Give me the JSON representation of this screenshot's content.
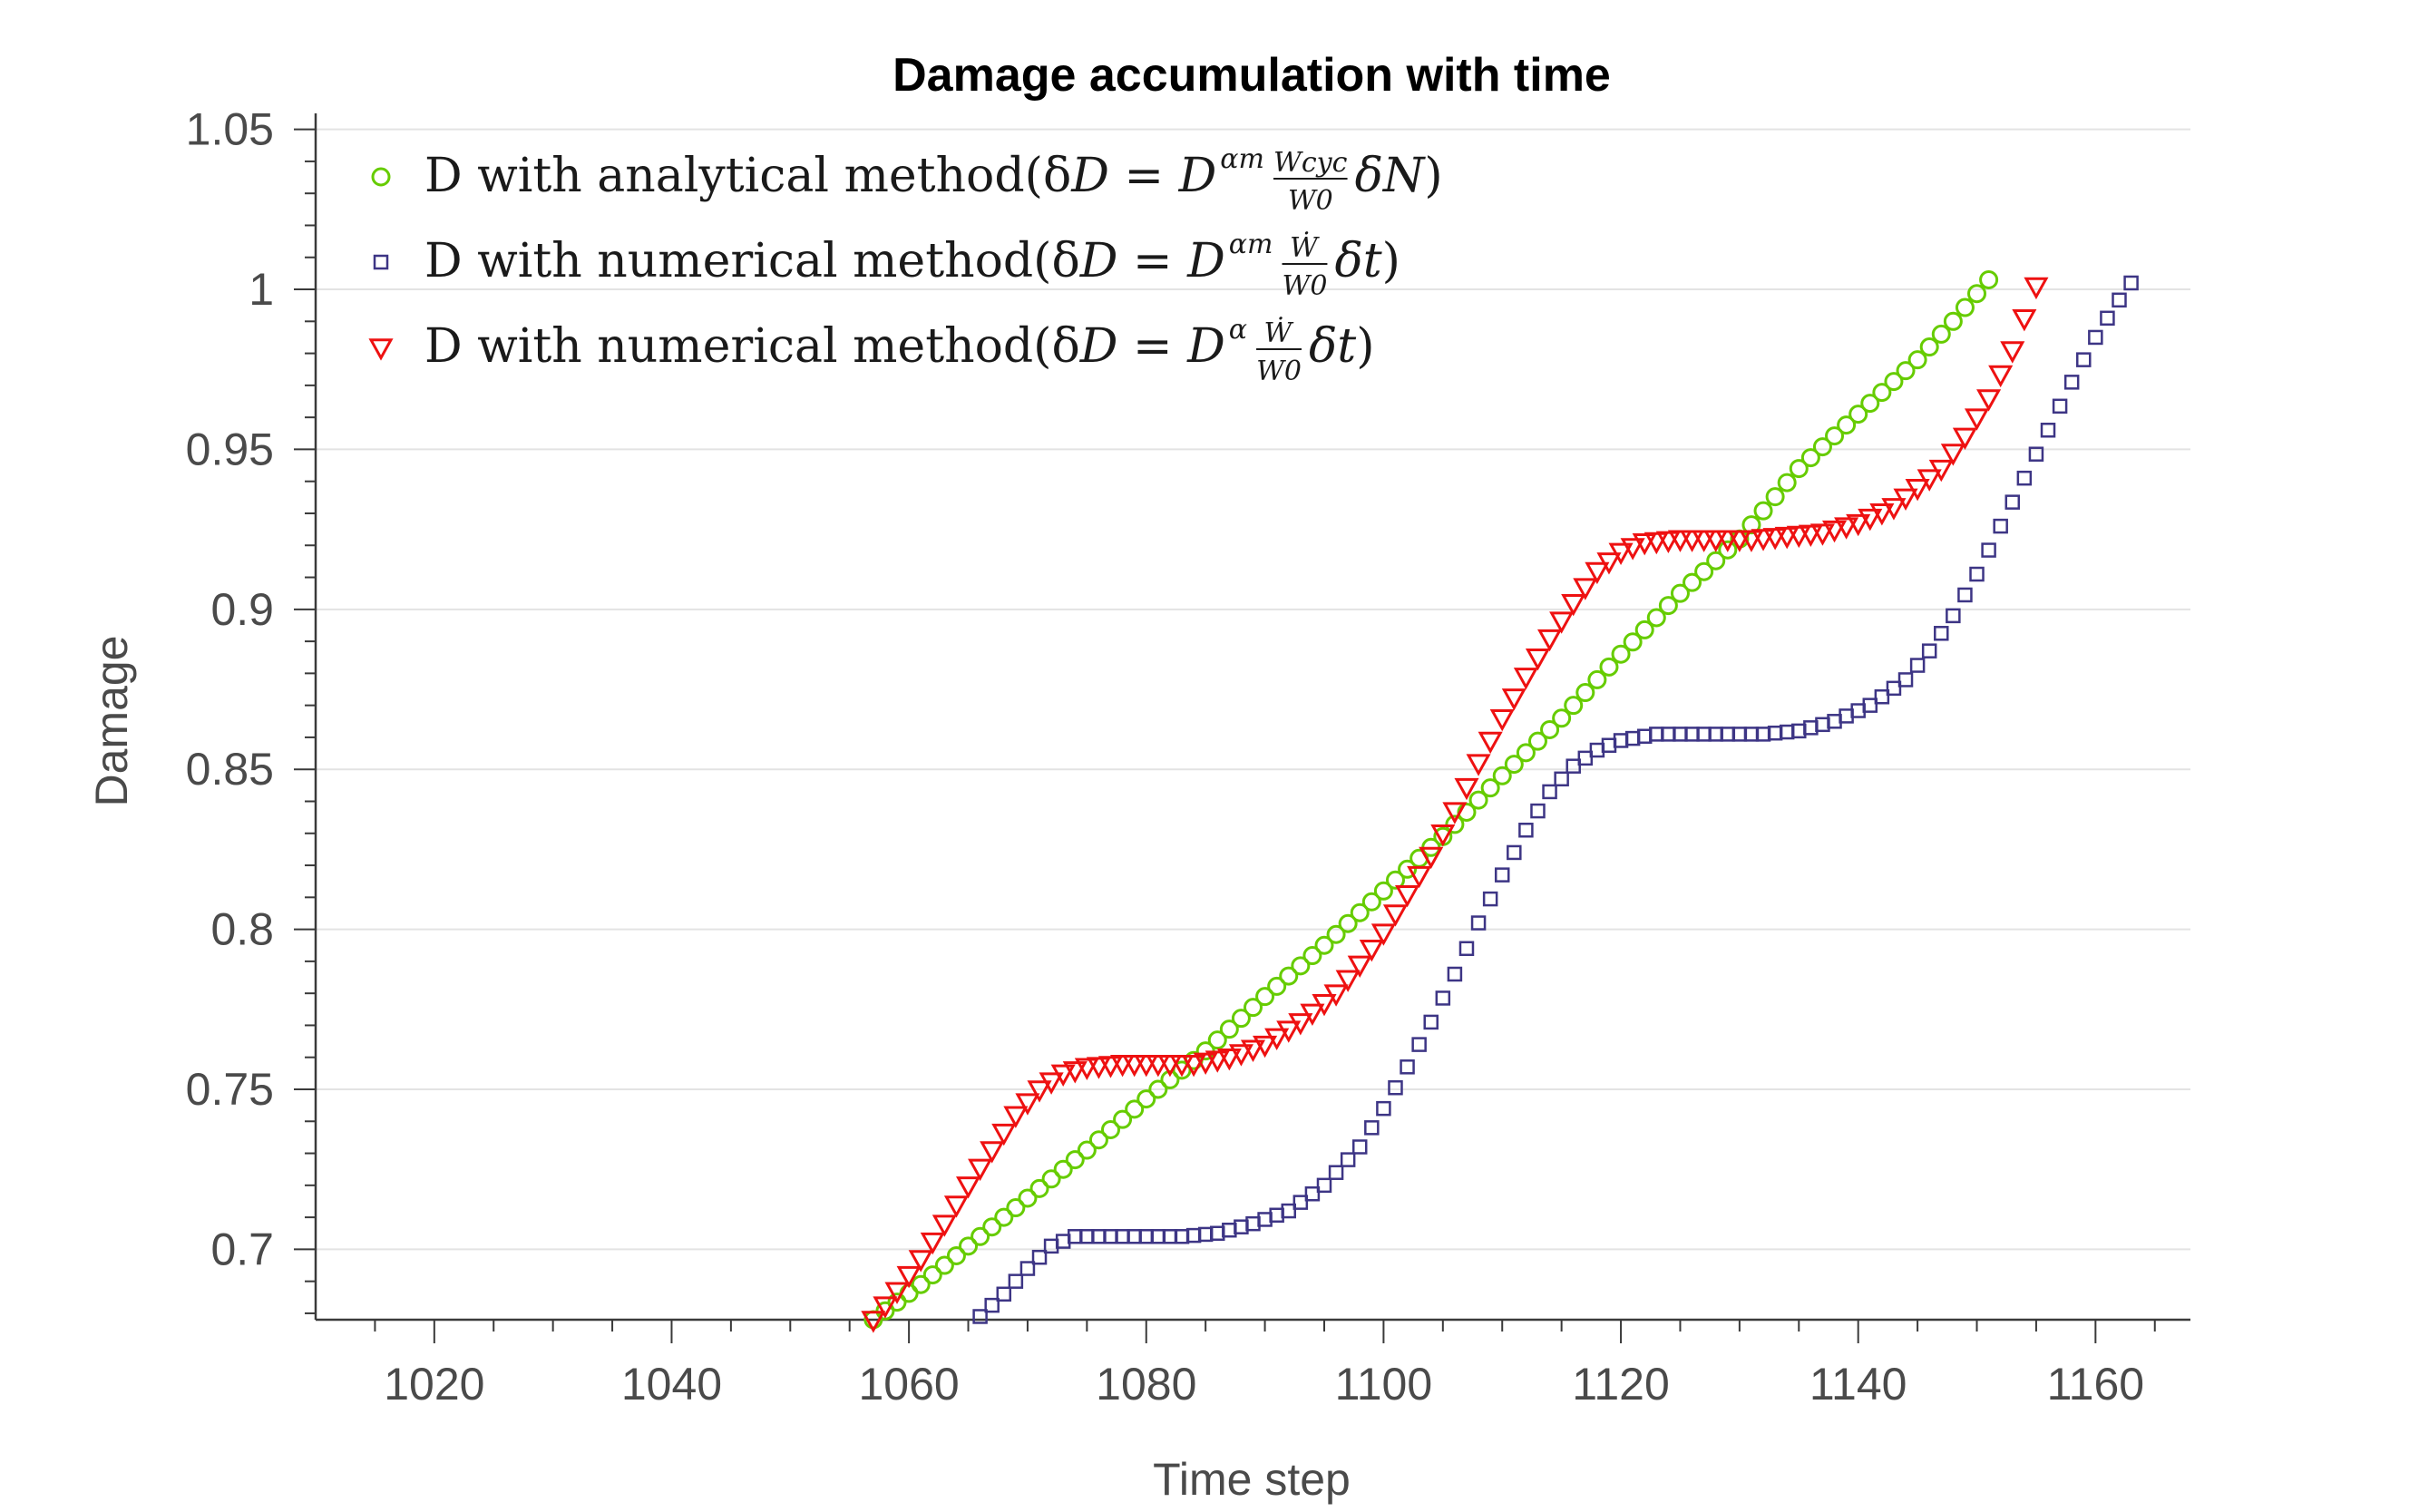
{
  "chart_data": {
    "type": "scatter",
    "title": "Damage accumulation with time",
    "xlabel": "Time step",
    "ylabel": "Damage",
    "xlim": [
      1010,
      1168
    ],
    "ylim": [
      0.678,
      1.055
    ],
    "xticks": [
      1020,
      1040,
      1060,
      1080,
      1100,
      1120,
      1140,
      1160
    ],
    "yticks": [
      0.7,
      0.75,
      0.8,
      0.85,
      0.9,
      0.95,
      1,
      1.05
    ],
    "ytick_labels": [
      "0.7",
      "0.75",
      "0.8",
      "0.85",
      "0.9",
      "0.95",
      "1",
      "1.05"
    ],
    "grid": "horizontal",
    "legend_position": "top-left",
    "series": [
      {
        "name": "D with analytical method(δD = D^{α_m} W_cyc/W_0 δN)",
        "marker": "circle",
        "color": "#66cc00",
        "x_start": 1057,
        "x_end": 1151,
        "points": [
          [
            1057,
            0.678
          ],
          [
            1061,
            0.689
          ],
          [
            1065,
            0.701
          ],
          [
            1070,
            0.716
          ],
          [
            1075,
            0.731
          ],
          [
            1080,
            0.747
          ],
          [
            1085,
            0.762
          ],
          [
            1090,
            0.779
          ],
          [
            1095,
            0.795
          ],
          [
            1100,
            0.812
          ],
          [
            1105,
            0.829
          ],
          [
            1110,
            0.848
          ],
          [
            1115,
            0.866
          ],
          [
            1120,
            0.886
          ],
          [
            1125,
            0.905
          ],
          [
            1130,
            0.922
          ],
          [
            1135,
            0.944
          ],
          [
            1140,
            0.961
          ],
          [
            1145,
            0.978
          ],
          [
            1148,
            0.99
          ],
          [
            1151,
            1.003
          ]
        ]
      },
      {
        "name": "D with numerical method(δD = D^{α_m} Ẇ/W_0 δt)",
        "marker": "square",
        "color": "#3d3585",
        "x_start": 1066,
        "x_end": 1163,
        "points": [
          [
            1066,
            0.679
          ],
          [
            1068,
            0.686
          ],
          [
            1070,
            0.694
          ],
          [
            1072,
            0.701
          ],
          [
            1074,
            0.704
          ],
          [
            1077,
            0.704
          ],
          [
            1080,
            0.704
          ],
          [
            1083,
            0.704
          ],
          [
            1086,
            0.705
          ],
          [
            1089,
            0.708
          ],
          [
            1092,
            0.712
          ],
          [
            1095,
            0.72
          ],
          [
            1098,
            0.732
          ],
          [
            1100,
            0.744
          ],
          [
            1102,
            0.757
          ],
          [
            1104,
            0.771
          ],
          [
            1106,
            0.786
          ],
          [
            1108,
            0.802
          ],
          [
            1110,
            0.817
          ],
          [
            1112,
            0.831
          ],
          [
            1114,
            0.843
          ],
          [
            1116,
            0.851
          ],
          [
            1118,
            0.856
          ],
          [
            1120,
            0.859
          ],
          [
            1123,
            0.861
          ],
          [
            1126,
            0.861
          ],
          [
            1129,
            0.861
          ],
          [
            1132,
            0.861
          ],
          [
            1135,
            0.862
          ],
          [
            1138,
            0.865
          ],
          [
            1141,
            0.87
          ],
          [
            1144,
            0.878
          ],
          [
            1146,
            0.887
          ],
          [
            1148,
            0.898
          ],
          [
            1150,
            0.911
          ],
          [
            1152,
            0.926
          ],
          [
            1154,
            0.941
          ],
          [
            1156,
            0.956
          ],
          [
            1158,
            0.971
          ],
          [
            1160,
            0.985
          ],
          [
            1161.5,
            0.994
          ],
          [
            1163,
            1.002
          ]
        ]
      },
      {
        "name": "D with numerical method(δD = D^{α} Ẇ/W_0 δt)",
        "marker": "triangle-down",
        "color": "#ee1111",
        "x_start": 1057,
        "x_end": 1155,
        "points": [
          [
            1057,
            0.678
          ],
          [
            1059,
            0.687
          ],
          [
            1061,
            0.697
          ],
          [
            1063,
            0.708
          ],
          [
            1065,
            0.72
          ],
          [
            1067,
            0.731
          ],
          [
            1069,
            0.742
          ],
          [
            1071,
            0.75
          ],
          [
            1073,
            0.755
          ],
          [
            1075,
            0.757
          ],
          [
            1078,
            0.758
          ],
          [
            1081,
            0.758
          ],
          [
            1084,
            0.758
          ],
          [
            1087,
            0.76
          ],
          [
            1090,
            0.764
          ],
          [
            1093,
            0.771
          ],
          [
            1096,
            0.78
          ],
          [
            1098,
            0.789
          ],
          [
            1100,
            0.799
          ],
          [
            1102,
            0.811
          ],
          [
            1104,
            0.823
          ],
          [
            1106,
            0.837
          ],
          [
            1108,
            0.852
          ],
          [
            1110,
            0.866
          ],
          [
            1112,
            0.879
          ],
          [
            1114,
            0.891
          ],
          [
            1116,
            0.902
          ],
          [
            1118,
            0.912
          ],
          [
            1120,
            0.918
          ],
          [
            1122,
            0.921
          ],
          [
            1125,
            0.922
          ],
          [
            1128,
            0.922
          ],
          [
            1131,
            0.922
          ],
          [
            1134,
            0.923
          ],
          [
            1137,
            0.924
          ],
          [
            1140,
            0.927
          ],
          [
            1143,
            0.932
          ],
          [
            1145,
            0.938
          ],
          [
            1147,
            0.944
          ],
          [
            1149,
            0.954
          ],
          [
            1151,
            0.966
          ],
          [
            1153,
            0.981
          ],
          [
            1155,
            1.001
          ]
        ]
      }
    ]
  },
  "legend": {
    "items": [
      {
        "prefix": "D with analytical method(δ",
        "type": "analytical"
      },
      {
        "prefix": "D with numerical method(δ",
        "type": "numerical_m"
      },
      {
        "prefix": "D with numerical method(δ",
        "type": "numerical"
      }
    ]
  }
}
